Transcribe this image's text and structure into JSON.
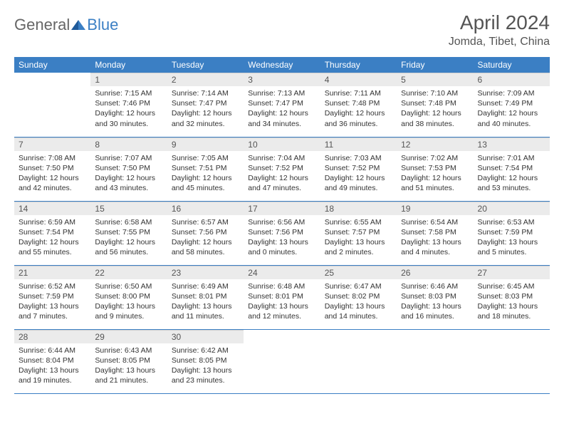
{
  "logo": {
    "part1": "General",
    "part2": "Blue"
  },
  "title": {
    "month": "April 2024",
    "location": "Jomda, Tibet, China"
  },
  "colors": {
    "header_bg": "#3b7fc4",
    "header_text": "#ffffff",
    "daynum_bg": "#ebebeb",
    "text": "#333333",
    "rule": "#3b7fc4"
  },
  "weekdays": [
    "Sunday",
    "Monday",
    "Tuesday",
    "Wednesday",
    "Thursday",
    "Friday",
    "Saturday"
  ],
  "weeks": [
    [
      null,
      {
        "n": "1",
        "sr": "Sunrise: 7:15 AM",
        "ss": "Sunset: 7:46 PM",
        "dl": "Daylight: 12 hours and 30 minutes."
      },
      {
        "n": "2",
        "sr": "Sunrise: 7:14 AM",
        "ss": "Sunset: 7:47 PM",
        "dl": "Daylight: 12 hours and 32 minutes."
      },
      {
        "n": "3",
        "sr": "Sunrise: 7:13 AM",
        "ss": "Sunset: 7:47 PM",
        "dl": "Daylight: 12 hours and 34 minutes."
      },
      {
        "n": "4",
        "sr": "Sunrise: 7:11 AM",
        "ss": "Sunset: 7:48 PM",
        "dl": "Daylight: 12 hours and 36 minutes."
      },
      {
        "n": "5",
        "sr": "Sunrise: 7:10 AM",
        "ss": "Sunset: 7:48 PM",
        "dl": "Daylight: 12 hours and 38 minutes."
      },
      {
        "n": "6",
        "sr": "Sunrise: 7:09 AM",
        "ss": "Sunset: 7:49 PM",
        "dl": "Daylight: 12 hours and 40 minutes."
      }
    ],
    [
      {
        "n": "7",
        "sr": "Sunrise: 7:08 AM",
        "ss": "Sunset: 7:50 PM",
        "dl": "Daylight: 12 hours and 42 minutes."
      },
      {
        "n": "8",
        "sr": "Sunrise: 7:07 AM",
        "ss": "Sunset: 7:50 PM",
        "dl": "Daylight: 12 hours and 43 minutes."
      },
      {
        "n": "9",
        "sr": "Sunrise: 7:05 AM",
        "ss": "Sunset: 7:51 PM",
        "dl": "Daylight: 12 hours and 45 minutes."
      },
      {
        "n": "10",
        "sr": "Sunrise: 7:04 AM",
        "ss": "Sunset: 7:52 PM",
        "dl": "Daylight: 12 hours and 47 minutes."
      },
      {
        "n": "11",
        "sr": "Sunrise: 7:03 AM",
        "ss": "Sunset: 7:52 PM",
        "dl": "Daylight: 12 hours and 49 minutes."
      },
      {
        "n": "12",
        "sr": "Sunrise: 7:02 AM",
        "ss": "Sunset: 7:53 PM",
        "dl": "Daylight: 12 hours and 51 minutes."
      },
      {
        "n": "13",
        "sr": "Sunrise: 7:01 AM",
        "ss": "Sunset: 7:54 PM",
        "dl": "Daylight: 12 hours and 53 minutes."
      }
    ],
    [
      {
        "n": "14",
        "sr": "Sunrise: 6:59 AM",
        "ss": "Sunset: 7:54 PM",
        "dl": "Daylight: 12 hours and 55 minutes."
      },
      {
        "n": "15",
        "sr": "Sunrise: 6:58 AM",
        "ss": "Sunset: 7:55 PM",
        "dl": "Daylight: 12 hours and 56 minutes."
      },
      {
        "n": "16",
        "sr": "Sunrise: 6:57 AM",
        "ss": "Sunset: 7:56 PM",
        "dl": "Daylight: 12 hours and 58 minutes."
      },
      {
        "n": "17",
        "sr": "Sunrise: 6:56 AM",
        "ss": "Sunset: 7:56 PM",
        "dl": "Daylight: 13 hours and 0 minutes."
      },
      {
        "n": "18",
        "sr": "Sunrise: 6:55 AM",
        "ss": "Sunset: 7:57 PM",
        "dl": "Daylight: 13 hours and 2 minutes."
      },
      {
        "n": "19",
        "sr": "Sunrise: 6:54 AM",
        "ss": "Sunset: 7:58 PM",
        "dl": "Daylight: 13 hours and 4 minutes."
      },
      {
        "n": "20",
        "sr": "Sunrise: 6:53 AM",
        "ss": "Sunset: 7:59 PM",
        "dl": "Daylight: 13 hours and 5 minutes."
      }
    ],
    [
      {
        "n": "21",
        "sr": "Sunrise: 6:52 AM",
        "ss": "Sunset: 7:59 PM",
        "dl": "Daylight: 13 hours and 7 minutes."
      },
      {
        "n": "22",
        "sr": "Sunrise: 6:50 AM",
        "ss": "Sunset: 8:00 PM",
        "dl": "Daylight: 13 hours and 9 minutes."
      },
      {
        "n": "23",
        "sr": "Sunrise: 6:49 AM",
        "ss": "Sunset: 8:01 PM",
        "dl": "Daylight: 13 hours and 11 minutes."
      },
      {
        "n": "24",
        "sr": "Sunrise: 6:48 AM",
        "ss": "Sunset: 8:01 PM",
        "dl": "Daylight: 13 hours and 12 minutes."
      },
      {
        "n": "25",
        "sr": "Sunrise: 6:47 AM",
        "ss": "Sunset: 8:02 PM",
        "dl": "Daylight: 13 hours and 14 minutes."
      },
      {
        "n": "26",
        "sr": "Sunrise: 6:46 AM",
        "ss": "Sunset: 8:03 PM",
        "dl": "Daylight: 13 hours and 16 minutes."
      },
      {
        "n": "27",
        "sr": "Sunrise: 6:45 AM",
        "ss": "Sunset: 8:03 PM",
        "dl": "Daylight: 13 hours and 18 minutes."
      }
    ],
    [
      {
        "n": "28",
        "sr": "Sunrise: 6:44 AM",
        "ss": "Sunset: 8:04 PM",
        "dl": "Daylight: 13 hours and 19 minutes."
      },
      {
        "n": "29",
        "sr": "Sunrise: 6:43 AM",
        "ss": "Sunset: 8:05 PM",
        "dl": "Daylight: 13 hours and 21 minutes."
      },
      {
        "n": "30",
        "sr": "Sunrise: 6:42 AM",
        "ss": "Sunset: 8:05 PM",
        "dl": "Daylight: 13 hours and 23 minutes."
      },
      null,
      null,
      null,
      null
    ]
  ]
}
